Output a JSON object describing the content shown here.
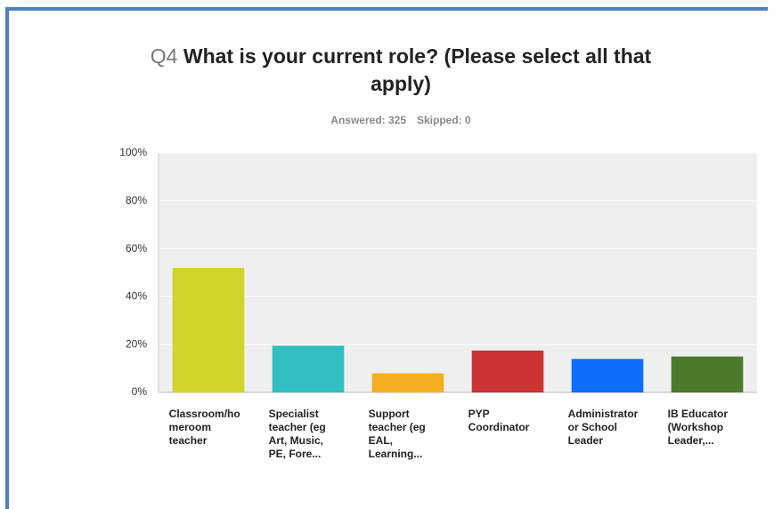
{
  "chart_data": {
    "type": "bar",
    "question_number": "Q4",
    "title": "What is your current role? (Please select all that apply)",
    "answered": "Answered: 325",
    "skipped": "Skipped: 0",
    "categories": [
      "Classroom/homeroom teacher",
      "Specialist teacher (eg Art, Music, PE, Fore...",
      "Support teacher (eg EAL, Learning...",
      "PYP Coordinator",
      "Administrator or School Leader",
      "IB Educator (Workshop Leader,..."
    ],
    "values": [
      52,
      19.5,
      8,
      17.5,
      14,
      15
    ],
    "colors": [
      "#d0d42b",
      "#33bfc1",
      "#f6ae21",
      "#cc3333",
      "#0d6efc",
      "#4a7b2c"
    ],
    "ylim": [
      0,
      100
    ],
    "yticks": [
      {
        "value": 0,
        "label": "0%"
      },
      {
        "value": 20,
        "label": "20%"
      },
      {
        "value": 40,
        "label": "40%"
      },
      {
        "value": 60,
        "label": "60%"
      },
      {
        "value": 80,
        "label": "80%"
      },
      {
        "value": 100,
        "label": "100%"
      }
    ],
    "grid": true
  }
}
